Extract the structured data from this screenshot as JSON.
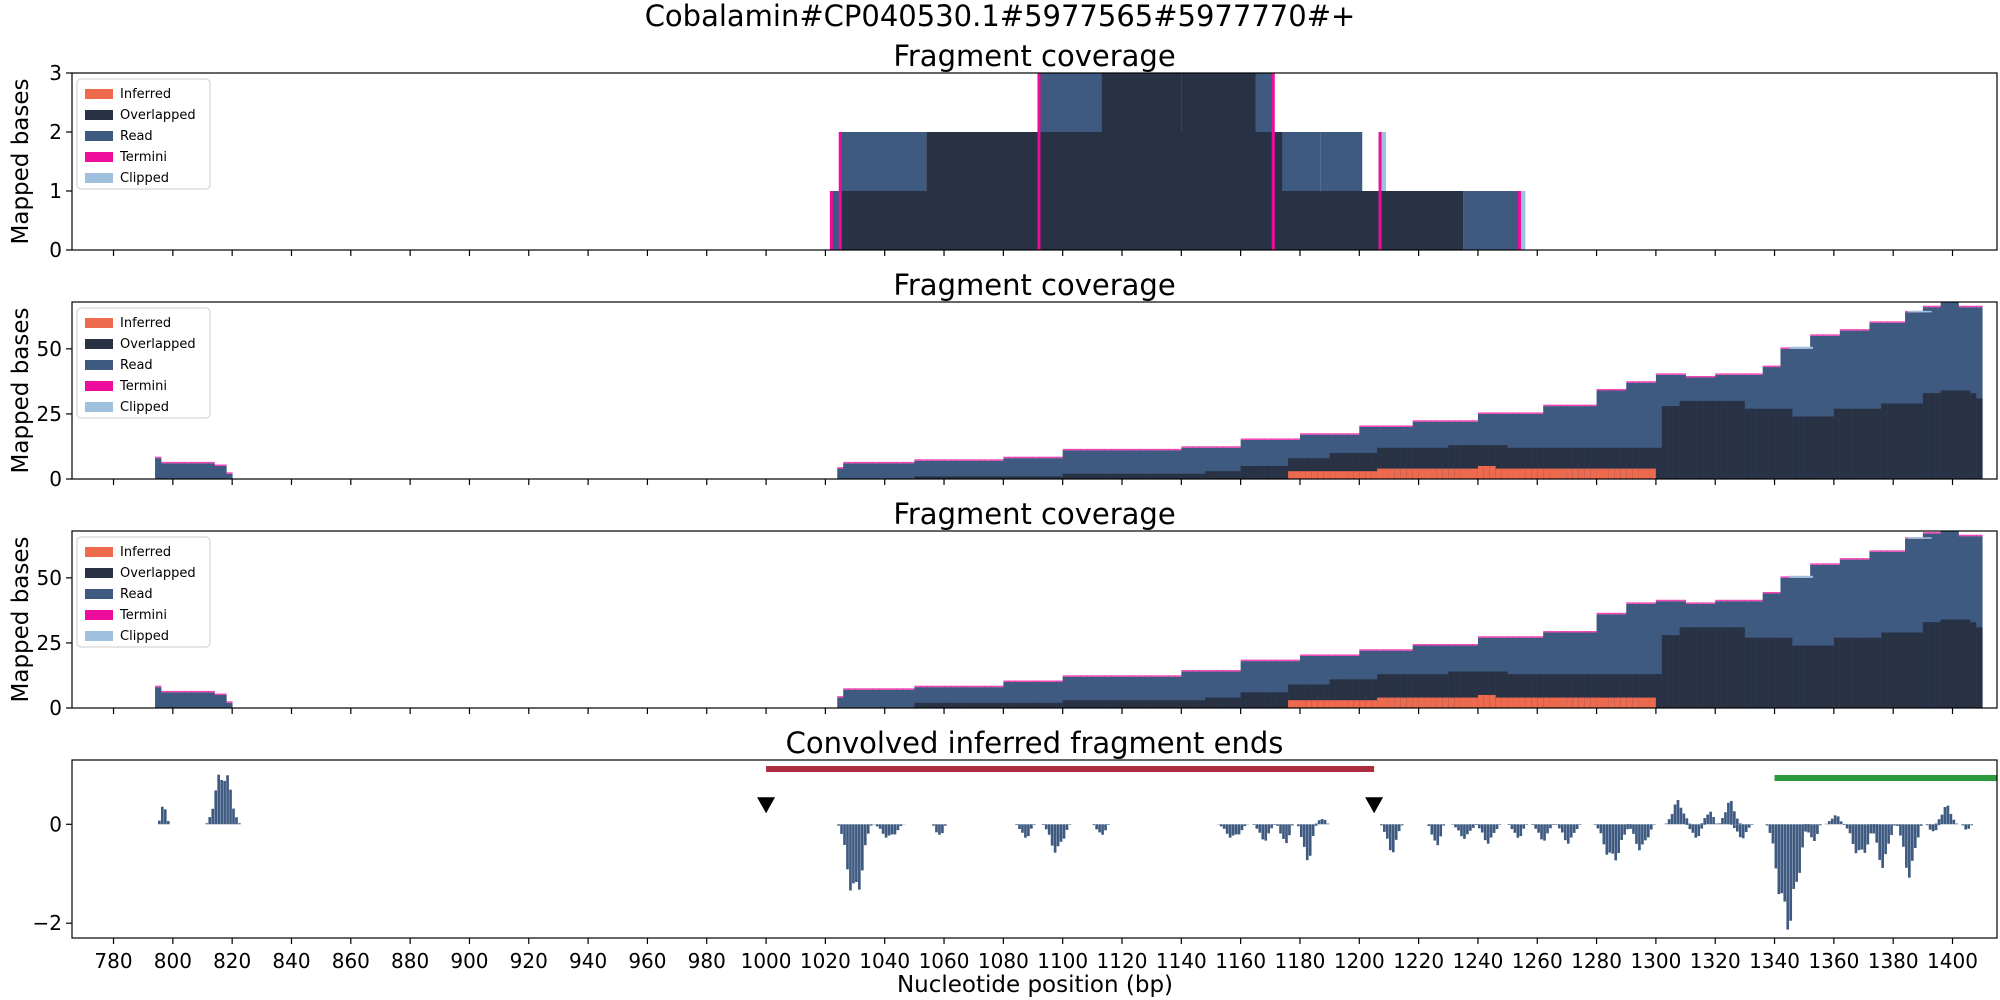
{
  "figure": {
    "suptitle": "Cobalamin#CP040530.1#5977565#5977770#+",
    "xlabel": "Nucleotide position (bp)",
    "colors": {
      "inferred": "#ee6a4e",
      "overlapped": "#283244",
      "read": "#3e5a80",
      "termini": "#ee0c9c",
      "clipped": "#9fc1de",
      "region_red": "#ad2e3e",
      "region_green": "#2e9a3e",
      "marker": "#000000"
    }
  },
  "chart_data": [
    {
      "type": "area",
      "title": "Fragment coverage",
      "ylabel": "Mapped bases",
      "xlim": [
        766,
        1415
      ],
      "ylim": [
        0,
        3
      ],
      "yticks": [
        0,
        1,
        2,
        3
      ],
      "legend": [
        "Inferred",
        "Overlapped",
        "Read",
        "Termini",
        "Clipped"
      ],
      "legend_position": "upper-left",
      "series": {
        "read": [
          [
            1022,
            1025,
            1
          ],
          [
            1025,
            1054,
            2
          ],
          [
            1054,
            1072,
            1
          ],
          [
            1072,
            1183,
            1
          ],
          [
            1072,
            1166,
            2
          ],
          [
            1166,
            1172,
            2
          ],
          [
            1172,
            1187,
            2
          ],
          [
            1187,
            1201,
            2
          ],
          [
            1201,
            1235,
            1
          ],
          [
            1235,
            1254,
            1
          ],
          [
            1092,
            1113,
            3
          ],
          [
            1140,
            1171,
            3
          ]
        ],
        "overlapped": [
          [
            1025,
            1235,
            1
          ],
          [
            1054,
            1174,
            2
          ],
          [
            1113,
            1140,
            3
          ],
          [
            1140,
            1165,
            3
          ]
        ],
        "clipped": [
          [
            1207,
            1209,
            2
          ],
          [
            1254,
            1256,
            1
          ]
        ],
        "termini_x": [
          1022,
          1025,
          1092,
          1171,
          1207,
          1254
        ]
      }
    },
    {
      "type": "area",
      "title": "Fragment coverage",
      "ylabel": "Mapped bases",
      "xlim": [
        766,
        1415
      ],
      "ylim": [
        0,
        68
      ],
      "yticks": [
        0,
        25,
        50
      ],
      "legend": [
        "Inferred",
        "Overlapped",
        "Read",
        "Termini",
        "Clipped"
      ],
      "legend_position": "upper-left",
      "read_profile": [
        [
          794,
          8
        ],
        [
          796,
          6
        ],
        [
          814,
          5
        ],
        [
          818,
          2
        ],
        [
          820,
          0
        ],
        [
          1022,
          0
        ],
        [
          1024,
          4
        ],
        [
          1026,
          6
        ],
        [
          1050,
          7
        ],
        [
          1080,
          8
        ],
        [
          1100,
          11
        ],
        [
          1140,
          12
        ],
        [
          1160,
          15
        ],
        [
          1180,
          17
        ],
        [
          1200,
          20
        ],
        [
          1218,
          22
        ],
        [
          1240,
          25
        ],
        [
          1262,
          28
        ],
        [
          1280,
          34
        ],
        [
          1290,
          37
        ],
        [
          1300,
          40
        ],
        [
          1310,
          39
        ],
        [
          1320,
          40
        ],
        [
          1336,
          43
        ],
        [
          1342,
          50
        ],
        [
          1352,
          55
        ],
        [
          1362,
          57
        ],
        [
          1372,
          60
        ],
        [
          1384,
          64
        ],
        [
          1390,
          66
        ],
        [
          1396,
          68
        ],
        [
          1402,
          66
        ],
        [
          1408,
          66
        ]
      ],
      "overlapped_profile": [
        [
          1022,
          0
        ],
        [
          1050,
          1
        ],
        [
          1100,
          2
        ],
        [
          1148,
          3
        ],
        [
          1160,
          5
        ],
        [
          1175,
          8
        ],
        [
          1190,
          10
        ],
        [
          1205,
          12
        ],
        [
          1230,
          13
        ],
        [
          1250,
          12
        ],
        [
          1300,
          12
        ],
        [
          1302,
          28
        ],
        [
          1308,
          30
        ],
        [
          1330,
          27
        ],
        [
          1346,
          24
        ],
        [
          1360,
          27
        ],
        [
          1376,
          29
        ],
        [
          1390,
          33
        ],
        [
          1396,
          34
        ],
        [
          1406,
          33
        ],
        [
          1408,
          31
        ]
      ],
      "inferred_profile": [
        [
          1175,
          3
        ],
        [
          1205,
          4
        ],
        [
          1240,
          5
        ],
        [
          1246,
          4
        ],
        [
          1300,
          4
        ]
      ],
      "clipped_profile": [
        [
          1345,
          0.8
        ],
        [
          1385,
          0.6
        ]
      ]
    },
    {
      "type": "area",
      "title": "Fragment coverage",
      "ylabel": "Mapped bases",
      "xlim": [
        766,
        1415
      ],
      "ylim": [
        0,
        68
      ],
      "yticks": [
        0,
        25,
        50
      ],
      "legend": [
        "Inferred",
        "Overlapped",
        "Read",
        "Termini",
        "Clipped"
      ],
      "legend_position": "upper-left",
      "read_profile": [
        [
          794,
          8
        ],
        [
          796,
          6
        ],
        [
          814,
          5
        ],
        [
          818,
          2
        ],
        [
          820,
          0
        ],
        [
          1022,
          0
        ],
        [
          1024,
          4
        ],
        [
          1026,
          7
        ],
        [
          1050,
          8
        ],
        [
          1080,
          10
        ],
        [
          1100,
          12
        ],
        [
          1140,
          14
        ],
        [
          1160,
          18
        ],
        [
          1180,
          20
        ],
        [
          1200,
          22
        ],
        [
          1218,
          24
        ],
        [
          1240,
          27
        ],
        [
          1262,
          29
        ],
        [
          1280,
          36
        ],
        [
          1290,
          40
        ],
        [
          1300,
          41
        ],
        [
          1310,
          40
        ],
        [
          1320,
          41
        ],
        [
          1336,
          44
        ],
        [
          1342,
          50
        ],
        [
          1352,
          55
        ],
        [
          1362,
          57
        ],
        [
          1372,
          60
        ],
        [
          1384,
          65
        ],
        [
          1390,
          67
        ],
        [
          1396,
          68
        ],
        [
          1402,
          66
        ],
        [
          1408,
          66
        ]
      ],
      "overlapped_profile": [
        [
          1022,
          0
        ],
        [
          1050,
          2
        ],
        [
          1100,
          3
        ],
        [
          1148,
          4
        ],
        [
          1160,
          6
        ],
        [
          1175,
          9
        ],
        [
          1190,
          11
        ],
        [
          1205,
          13
        ],
        [
          1230,
          14
        ],
        [
          1250,
          13
        ],
        [
          1300,
          13
        ],
        [
          1302,
          28
        ],
        [
          1308,
          31
        ],
        [
          1330,
          27
        ],
        [
          1346,
          24
        ],
        [
          1360,
          27
        ],
        [
          1376,
          29
        ],
        [
          1390,
          33
        ],
        [
          1396,
          34
        ],
        [
          1406,
          33
        ],
        [
          1408,
          31
        ]
      ],
      "inferred_profile": [
        [
          1175,
          3
        ],
        [
          1205,
          4
        ],
        [
          1240,
          5
        ],
        [
          1246,
          4
        ],
        [
          1300,
          4
        ]
      ],
      "clipped_profile": [
        [
          1345,
          0.8
        ],
        [
          1385,
          0.6
        ]
      ]
    },
    {
      "type": "bar",
      "title": "Convolved inferred fragment ends",
      "ylabel": "",
      "xlim": [
        766,
        1415
      ],
      "ylim": [
        -2.3,
        1.3
      ],
      "yticks": [
        -2,
        0
      ],
      "xticks": [
        780,
        800,
        820,
        840,
        860,
        880,
        900,
        920,
        940,
        960,
        980,
        1000,
        1020,
        1040,
        1060,
        1080,
        1100,
        1120,
        1140,
        1160,
        1180,
        1200,
        1220,
        1240,
        1260,
        1280,
        1300,
        1320,
        1340,
        1360,
        1380,
        1400
      ],
      "lobes": [
        [
          795,
          799,
          0.5
        ],
        [
          811,
          823,
          1.2
        ],
        [
          1024,
          1036,
          -1.6
        ],
        [
          1036,
          1047,
          -0.3
        ],
        [
          1056,
          1061,
          -0.3
        ],
        [
          1084,
          1091,
          -0.3
        ],
        [
          1093,
          1103,
          -0.6
        ],
        [
          1110,
          1116,
          -0.25
        ],
        [
          1152,
          1163,
          -0.3
        ],
        [
          1164,
          1172,
          -0.35
        ],
        [
          1172,
          1178,
          -0.45
        ],
        [
          1179,
          1186,
          -0.8
        ],
        [
          1185,
          1190,
          0.15
        ],
        [
          1207,
          1215,
          -0.6
        ],
        [
          1223,
          1229,
          -0.5
        ],
        [
          1231,
          1240,
          -0.3
        ],
        [
          1239,
          1248,
          -0.4
        ],
        [
          1250,
          1257,
          -0.3
        ],
        [
          1258,
          1266,
          -0.35
        ],
        [
          1266,
          1275,
          -0.4
        ],
        [
          1279,
          1292,
          -0.8
        ],
        [
          1290,
          1300,
          -0.55
        ],
        [
          1303,
          1312,
          0.5
        ],
        [
          1310,
          1317,
          -0.3
        ],
        [
          1315,
          1321,
          0.3
        ],
        [
          1321,
          1329,
          0.5
        ],
        [
          1325,
          1333,
          -0.3
        ],
        [
          1337,
          1352,
          -2.2
        ],
        [
          1350,
          1356,
          -0.4
        ],
        [
          1357,
          1364,
          0.2
        ],
        [
          1363,
          1375,
          -0.7
        ],
        [
          1372,
          1381,
          -0.9
        ],
        [
          1381,
          1390,
          -1.1
        ],
        [
          1391,
          1396,
          -0.2
        ],
        [
          1394,
          1402,
          0.4
        ],
        [
          1403,
          1407,
          -0.15
        ]
      ],
      "region_red": [
        1000,
        1205
      ],
      "region_green": [
        1340,
        1415
      ],
      "markers_x": [
        1000,
        1205
      ]
    }
  ]
}
